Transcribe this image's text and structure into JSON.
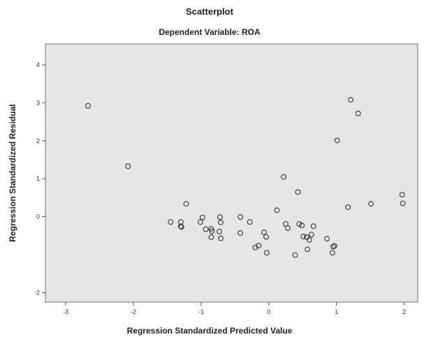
{
  "chart_data": {
    "type": "scatter",
    "title": "Scatterplot",
    "subtitle": "Dependent Variable: ROA",
    "xlabel": "Regression Standardized Predicted Value",
    "ylabel": "Regression Standardized Residual",
    "xlim": [
      -3.3,
      2.2
    ],
    "ylim": [
      -2.25,
      4.55
    ],
    "x_ticks": [
      -3,
      -2,
      -1,
      0,
      1,
      2
    ],
    "x_tick_labels": [
      "-3",
      "-2",
      "-1",
      "0",
      "1",
      "2"
    ],
    "y_ticks": [
      -2,
      0,
      1,
      2,
      3,
      4
    ],
    "y_tick_labels": [
      "-2",
      "0",
      "1",
      "2",
      "3",
      "4"
    ],
    "grid": false,
    "background_color": "#e6e6e6",
    "points": [
      {
        "x": -2.67,
        "y": 2.92
      },
      {
        "x": -2.08,
        "y": 1.33
      },
      {
        "x": -1.22,
        "y": 0.34
      },
      {
        "x": -1.45,
        "y": -0.14
      },
      {
        "x": -1.3,
        "y": -0.14
      },
      {
        "x": -1.3,
        "y": -0.25
      },
      {
        "x": -1.29,
        "y": -0.27
      },
      {
        "x": -0.98,
        "y": -0.02
      },
      {
        "x": -1.01,
        "y": -0.14
      },
      {
        "x": -0.72,
        "y": -0.01
      },
      {
        "x": -0.71,
        "y": -0.15
      },
      {
        "x": -0.93,
        "y": -0.33
      },
      {
        "x": -0.85,
        "y": -0.32
      },
      {
        "x": -0.84,
        "y": -0.38
      },
      {
        "x": -0.73,
        "y": -0.39
      },
      {
        "x": -0.85,
        "y": -0.54
      },
      {
        "x": -0.71,
        "y": -0.57
      },
      {
        "x": -0.42,
        "y": -0.01
      },
      {
        "x": -0.28,
        "y": -0.14
      },
      {
        "x": -0.42,
        "y": -0.43
      },
      {
        "x": -0.07,
        "y": -0.41
      },
      {
        "x": -0.04,
        "y": -0.53
      },
      {
        "x": -0.2,
        "y": -0.81
      },
      {
        "x": -0.15,
        "y": -0.76
      },
      {
        "x": -0.03,
        "y": -0.95
      },
      {
        "x": 0.12,
        "y": 0.17
      },
      {
        "x": 0.22,
        "y": 1.05
      },
      {
        "x": 0.43,
        "y": 0.65
      },
      {
        "x": 0.25,
        "y": -0.19
      },
      {
        "x": 0.28,
        "y": -0.3
      },
      {
        "x": 0.45,
        "y": -0.19
      },
      {
        "x": 0.49,
        "y": -0.23
      },
      {
        "x": 0.51,
        "y": -0.52
      },
      {
        "x": 0.56,
        "y": -0.54
      },
      {
        "x": 0.6,
        "y": -0.61
      },
      {
        "x": 0.63,
        "y": -0.47
      },
      {
        "x": 0.66,
        "y": -0.25
      },
      {
        "x": 0.57,
        "y": -0.86
      },
      {
        "x": 0.39,
        "y": -1.01
      },
      {
        "x": 0.86,
        "y": -0.58
      },
      {
        "x": 0.95,
        "y": -0.79
      },
      {
        "x": 0.97,
        "y": -0.77
      },
      {
        "x": 0.94,
        "y": -0.95
      },
      {
        "x": 1.01,
        "y": 2.01
      },
      {
        "x": 1.21,
        "y": 3.08
      },
      {
        "x": 1.32,
        "y": 2.72
      },
      {
        "x": 1.17,
        "y": 0.25
      },
      {
        "x": 1.51,
        "y": 0.34
      },
      {
        "x": 1.97,
        "y": 0.58
      },
      {
        "x": 1.98,
        "y": 0.35
      }
    ]
  }
}
